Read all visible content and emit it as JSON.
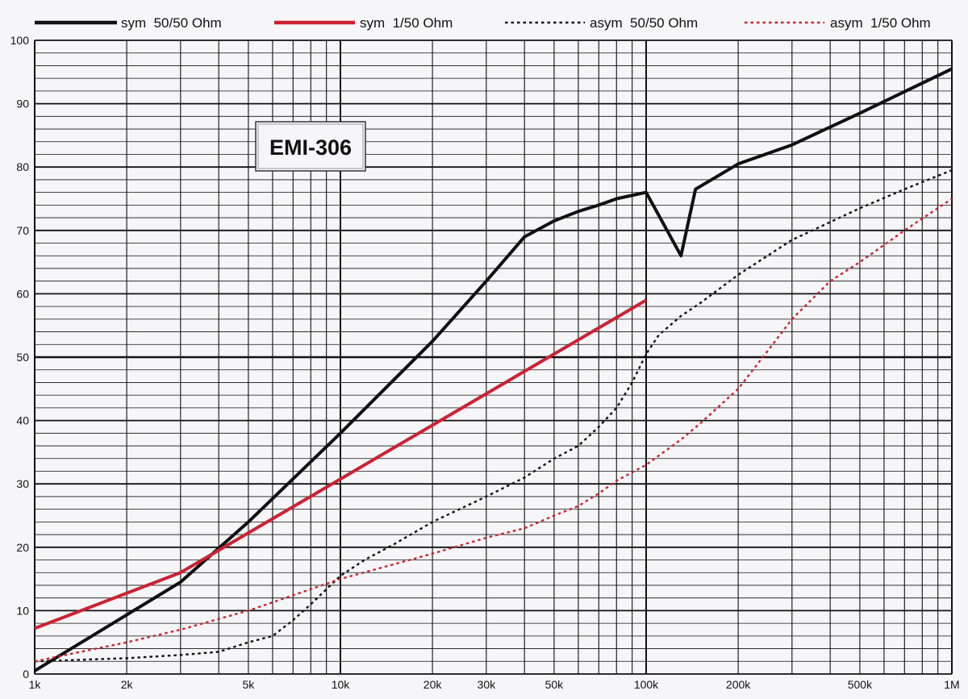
{
  "chart_data": {
    "type": "line",
    "title": "EMI-306",
    "xscale": "log",
    "grid": true,
    "legend_position": "top",
    "xlim": [
      1000,
      1000000
    ],
    "ylim": [
      0,
      100
    ],
    "x_ticks": [
      {
        "value": 1000,
        "label": "1k"
      },
      {
        "value": 2000,
        "label": "2k"
      },
      {
        "value": 5000,
        "label": "5k"
      },
      {
        "value": 10000,
        "label": "10k"
      },
      {
        "value": 20000,
        "label": "20k"
      },
      {
        "value": 30000,
        "label": "30k"
      },
      {
        "value": 50000,
        "label": "50k"
      },
      {
        "value": 100000,
        "label": "100k"
      },
      {
        "value": 200000,
        "label": "200k"
      },
      {
        "value": 500000,
        "label": "500k"
      },
      {
        "value": 1000000,
        "label": "1M"
      }
    ],
    "y_ticks": [
      {
        "value": 0,
        "label": "0"
      },
      {
        "value": 10,
        "label": "10"
      },
      {
        "value": 20,
        "label": "20"
      },
      {
        "value": 30,
        "label": "30"
      },
      {
        "value": 40,
        "label": "40"
      },
      {
        "value": 50,
        "label": "50"
      },
      {
        "value": 60,
        "label": "60"
      },
      {
        "value": 70,
        "label": "70"
      },
      {
        "value": 80,
        "label": "80"
      },
      {
        "value": 90,
        "label": "90"
      },
      {
        "value": 100,
        "label": "100"
      }
    ],
    "series": [
      {
        "name": "sym  50/50 Ohm",
        "color": "#111111",
        "style": "solid",
        "x": [
          1000,
          3000,
          5000,
          10000,
          20000,
          30000,
          40000,
          50000,
          60000,
          70000,
          80000,
          100000,
          130000,
          145000,
          200000,
          300000,
          500000,
          1000000
        ],
        "y": [
          0.5,
          14.5,
          24,
          38,
          52.5,
          62,
          69,
          71.5,
          73,
          74,
          75,
          76,
          66,
          76.5,
          80.5,
          83.5,
          88.5,
          95.5
        ]
      },
      {
        "name": "sym  1/50 Ohm",
        "color": "#cc2233",
        "style": "solid",
        "x": [
          1000,
          3000,
          100000
        ],
        "y": [
          7.2,
          16,
          59
        ]
      },
      {
        "name": "asym  50/50 Ohm",
        "color": "#111111",
        "style": "dotted",
        "x": [
          1000,
          2000,
          3000,
          4000,
          5000,
          6000,
          7000,
          8000,
          10000,
          12000,
          15000,
          20000,
          30000,
          40000,
          50000,
          60000,
          70000,
          80000,
          90000,
          100000,
          110000,
          130000,
          150000,
          200000,
          300000,
          500000,
          700000,
          1000000
        ],
        "y": [
          2,
          2.5,
          3,
          3.5,
          5,
          6,
          8.5,
          11,
          15.5,
          18,
          20.5,
          24,
          28,
          31,
          34,
          36,
          39,
          42,
          46,
          50.5,
          53.5,
          56.5,
          58.5,
          63,
          68.5,
          73.5,
          76.5,
          79.5
        ]
      },
      {
        "name": "asym  1/50 Ohm",
        "color": "#cc2233",
        "style": "dotted",
        "x": [
          1000,
          2000,
          3000,
          5000,
          10000,
          20000,
          30000,
          40000,
          50000,
          60000,
          70000,
          80000,
          100000,
          130000,
          150000,
          200000,
          250000,
          300000,
          400000,
          500000,
          700000,
          1000000
        ],
        "y": [
          2,
          5,
          7,
          10,
          15,
          19,
          21.5,
          23,
          25,
          26.5,
          28.5,
          30.5,
          33,
          37,
          39.5,
          45,
          51,
          56,
          62,
          65,
          70,
          75
        ]
      }
    ]
  }
}
